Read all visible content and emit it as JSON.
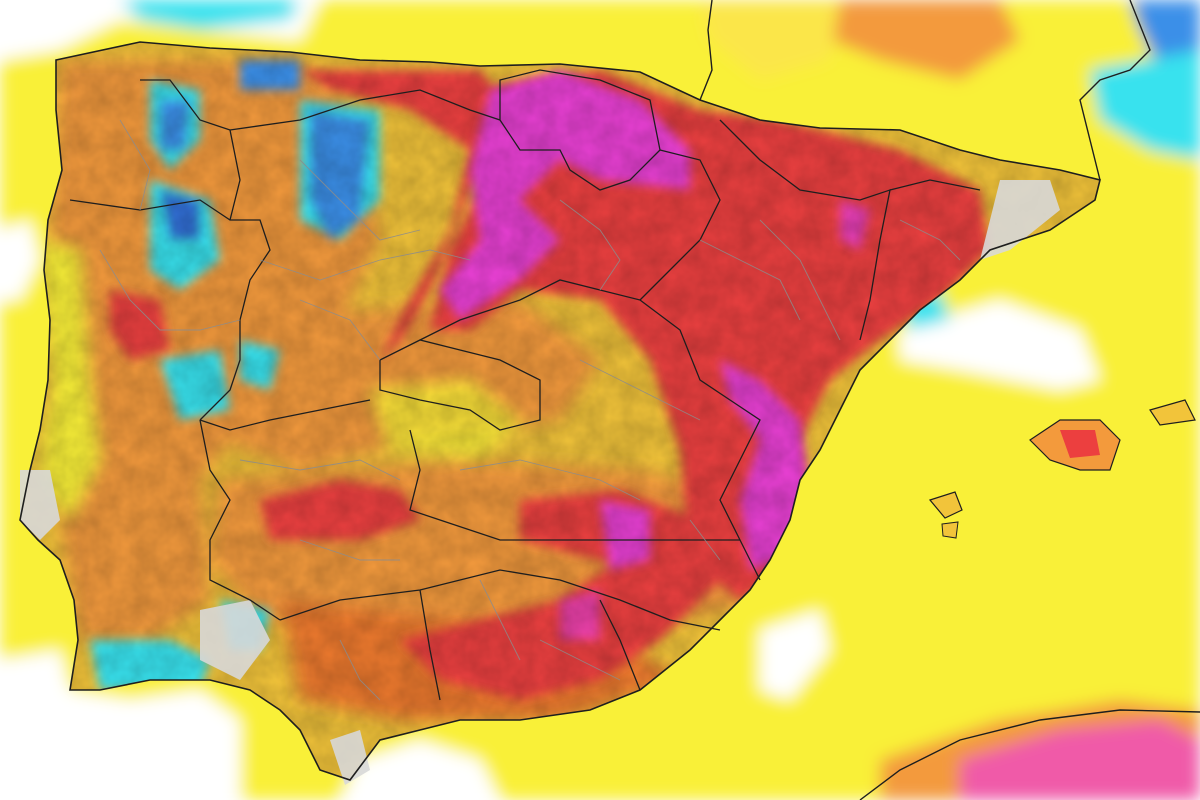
{
  "map": {
    "colors": {
      "background": "#ffffff",
      "yellow": "#f9f038",
      "yellow_light": "#fbe64a",
      "gold": "#f2c43a",
      "orange": "#f39a3c",
      "orange_deep": "#ee7a2e",
      "red": "#ec3f3f",
      "magenta": "#e940d4",
      "pink": "#f05aa8",
      "cyan": "#38e2ee",
      "blue": "#3a8fe8",
      "blue_deep": "#3270d8",
      "grey_relief": "#d8d8d8",
      "border": "#1e1e1e",
      "province_border": "#8c8c8c"
    },
    "layers": [
      {
        "name": "sea-anomaly-field",
        "color": "yellow"
      },
      {
        "name": "land-anomaly-field",
        "color": "orange"
      },
      {
        "name": "hot-anomaly-core",
        "color": "red"
      },
      {
        "name": "extreme-anomaly-core",
        "color": "magenta"
      },
      {
        "name": "cool-anomaly-patches",
        "color": "cyan"
      },
      {
        "name": "cold-anomaly-patches",
        "color": "blue"
      },
      {
        "name": "coastline",
        "color": "border"
      },
      {
        "name": "region-borders",
        "color": "border"
      },
      {
        "name": "province-borders",
        "color": "province_border"
      }
    ]
  }
}
